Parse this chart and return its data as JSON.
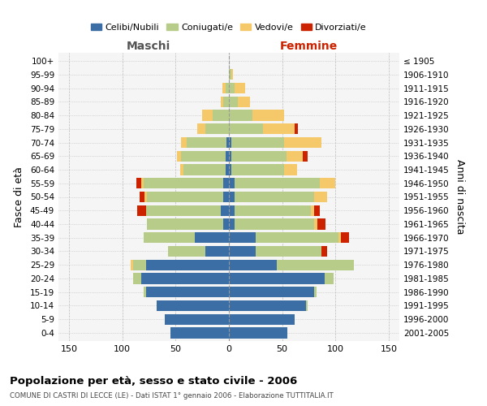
{
  "age_groups": [
    "0-4",
    "5-9",
    "10-14",
    "15-19",
    "20-24",
    "25-29",
    "30-34",
    "35-39",
    "40-44",
    "45-49",
    "50-54",
    "55-59",
    "60-64",
    "65-69",
    "70-74",
    "75-79",
    "80-84",
    "85-89",
    "90-94",
    "95-99",
    "100+"
  ],
  "birth_years": [
    "2001-2005",
    "1996-2000",
    "1991-1995",
    "1986-1990",
    "1981-1985",
    "1976-1980",
    "1971-1975",
    "1966-1970",
    "1961-1965",
    "1956-1960",
    "1951-1955",
    "1946-1950",
    "1941-1945",
    "1936-1940",
    "1931-1935",
    "1926-1930",
    "1921-1925",
    "1916-1920",
    "1911-1915",
    "1906-1910",
    "≤ 1905"
  ],
  "colors": {
    "celibi": "#3a6ea5",
    "coniugati": "#b8cc8a",
    "vedovi": "#f5c96a",
    "divorziati": "#cc2200"
  },
  "maschi": {
    "celibi": [
      55,
      60,
      68,
      78,
      82,
      78,
      22,
      32,
      5,
      8,
      5,
      5,
      3,
      3,
      2,
      0,
      0,
      0,
      0,
      0,
      0
    ],
    "coniugati": [
      0,
      0,
      0,
      2,
      8,
      12,
      35,
      48,
      72,
      70,
      72,
      75,
      40,
      42,
      38,
      22,
      15,
      5,
      3,
      0,
      0
    ],
    "vedovi": [
      0,
      0,
      0,
      0,
      0,
      2,
      0,
      0,
      0,
      0,
      2,
      2,
      3,
      4,
      5,
      8,
      10,
      3,
      3,
      0,
      0
    ],
    "divorziati": [
      0,
      0,
      0,
      0,
      0,
      0,
      0,
      0,
      0,
      8,
      5,
      5,
      0,
      0,
      0,
      0,
      0,
      0,
      0,
      0,
      0
    ]
  },
  "femmine": {
    "celibi": [
      55,
      62,
      72,
      80,
      90,
      45,
      25,
      25,
      5,
      5,
      5,
      5,
      2,
      2,
      2,
      0,
      0,
      0,
      0,
      0,
      0
    ],
    "coniugati": [
      0,
      0,
      2,
      2,
      8,
      72,
      62,
      78,
      75,
      72,
      75,
      80,
      50,
      52,
      50,
      32,
      22,
      8,
      5,
      2,
      0
    ],
    "vedovi": [
      0,
      0,
      0,
      0,
      0,
      0,
      0,
      2,
      3,
      3,
      12,
      15,
      12,
      15,
      35,
      30,
      30,
      12,
      10,
      2,
      0
    ],
    "divorziati": [
      0,
      0,
      0,
      0,
      0,
      0,
      5,
      8,
      8,
      5,
      0,
      0,
      0,
      5,
      0,
      3,
      0,
      0,
      0,
      0,
      0
    ]
  },
  "title": "Popolazione per età, sesso e stato civile - 2006",
  "subtitle": "COMUNE DI CASTRI DI LECCE (LE) - Dati ISTAT 1° gennaio 2006 - Elaborazione TUTTITALIA.IT",
  "header_left": "Maschi",
  "header_right": "Femmine",
  "ylabel_left": "Fasce di età",
  "ylabel_right": "Anni di nascita",
  "xlim": 160,
  "legend_labels": [
    "Celibi/Nubili",
    "Coniugati/e",
    "Vedovi/e",
    "Divorziati/e"
  ],
  "bg_color": "#ffffff",
  "plot_bg": "#f5f5f5",
  "grid_color": "#bbbbbb"
}
